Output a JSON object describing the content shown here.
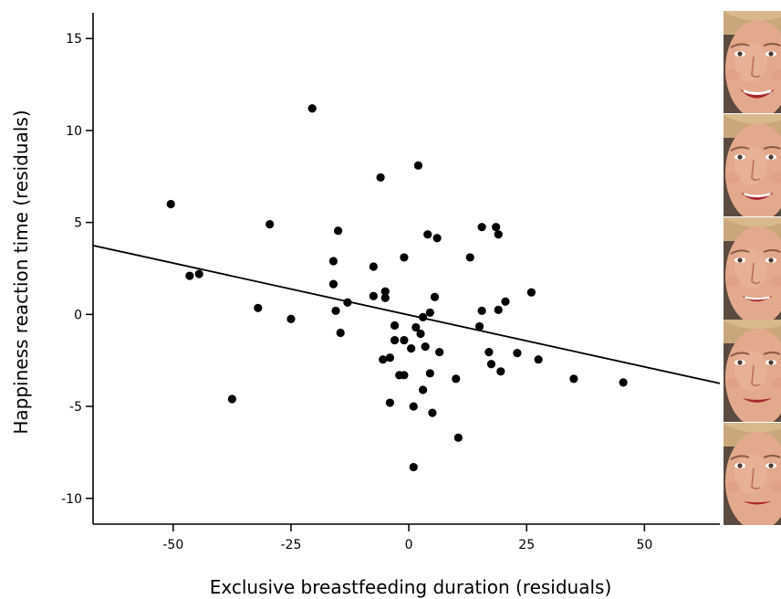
{
  "chart_data": {
    "type": "scatter",
    "title": "",
    "xlabel": "Exclusive breastfeeding duration (residuals)",
    "ylabel": "Happiness reaction time (residuals)",
    "xlim": [
      -67,
      66
    ],
    "ylim": [
      -11.4,
      16.4
    ],
    "xticks": [
      -50,
      -25,
      0,
      25,
      50
    ],
    "yticks": [
      -10,
      -5,
      0,
      5,
      10,
      15
    ],
    "grid": false,
    "points": [
      [
        -50.5,
        6.0
      ],
      [
        -46.5,
        2.1
      ],
      [
        -44.5,
        2.2
      ],
      [
        -37.5,
        -4.6
      ],
      [
        -32,
        0.35
      ],
      [
        -29.5,
        4.9
      ],
      [
        -25,
        -0.25
      ],
      [
        -20.5,
        11.2
      ],
      [
        -16,
        2.9
      ],
      [
        -16,
        1.65
      ],
      [
        -15.5,
        0.2
      ],
      [
        -15,
        4.55
      ],
      [
        -14.5,
        -1.0
      ],
      [
        -13,
        0.65
      ],
      [
        -7.5,
        2.6
      ],
      [
        -7.5,
        1.0
      ],
      [
        -6,
        7.45
      ],
      [
        -5.5,
        -2.45
      ],
      [
        -5,
        1.25
      ],
      [
        -5,
        0.9
      ],
      [
        -4,
        -2.35
      ],
      [
        -4,
        -4.8
      ],
      [
        -3,
        -0.6
      ],
      [
        -3,
        -1.4
      ],
      [
        -2,
        -3.3
      ],
      [
        -1,
        3.1
      ],
      [
        -1,
        -1.4
      ],
      [
        -1,
        -3.3
      ],
      [
        0.5,
        -1.85
      ],
      [
        1,
        -5.0
      ],
      [
        1,
        -8.3
      ],
      [
        1.5,
        -0.7
      ],
      [
        2,
        8.1
      ],
      [
        2.5,
        -1.05
      ],
      [
        3,
        -0.15
      ],
      [
        3,
        -4.1
      ],
      [
        3.5,
        -1.75
      ],
      [
        4,
        4.35
      ],
      [
        4.5,
        0.1
      ],
      [
        4.5,
        -3.2
      ],
      [
        5,
        -5.35
      ],
      [
        5.5,
        0.95
      ],
      [
        6,
        4.15
      ],
      [
        6.5,
        -2.05
      ],
      [
        10,
        -3.5
      ],
      [
        10.5,
        -6.7
      ],
      [
        13,
        3.1
      ],
      [
        15,
        -0.65
      ],
      [
        15.5,
        4.75
      ],
      [
        15.5,
        0.2
      ],
      [
        17,
        -2.05
      ],
      [
        17.5,
        -2.7
      ],
      [
        18.5,
        4.75
      ],
      [
        19,
        4.35
      ],
      [
        19,
        0.25
      ],
      [
        19.5,
        -3.1
      ],
      [
        20.5,
        0.7
      ],
      [
        23,
        -2.1
      ],
      [
        26,
        1.2
      ],
      [
        27.5,
        -2.45
      ],
      [
        35,
        -3.5
      ],
      [
        45.5,
        -3.7
      ]
    ],
    "fit_line": {
      "x": [
        -67,
        66
      ],
      "y": [
        3.75,
        -3.75
      ]
    }
  },
  "colors": {
    "points": "#000000",
    "line": "#000000",
    "background": "#ffffff"
  },
  "face_strip": {
    "description_icon": "face-photo-icon",
    "panels": 5
  }
}
